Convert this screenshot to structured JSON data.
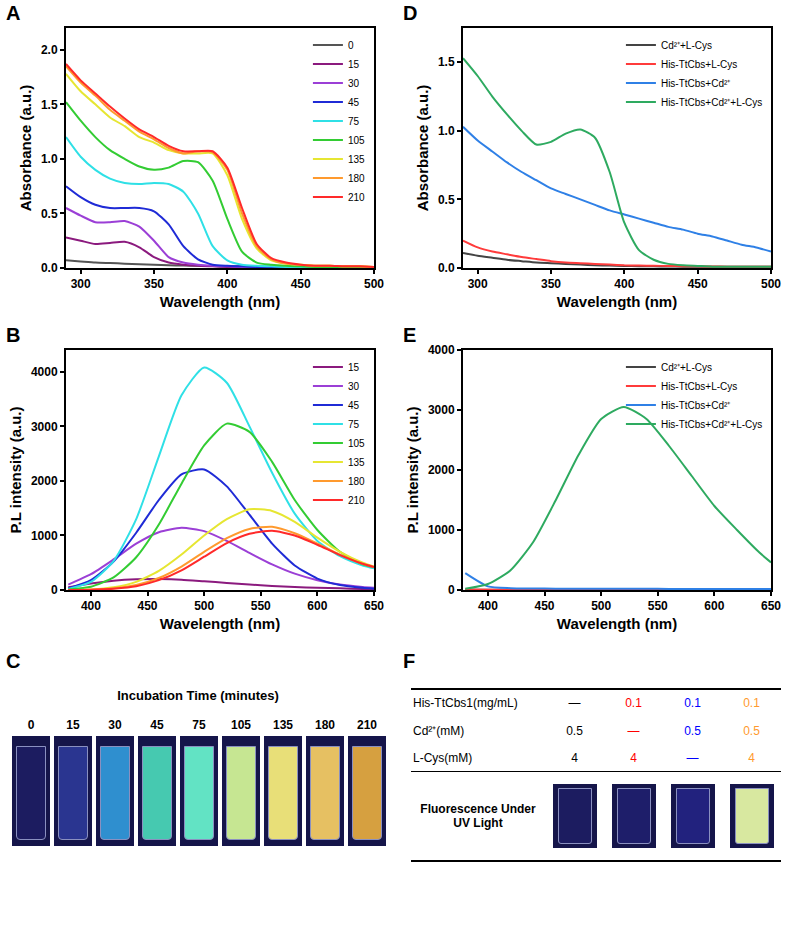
{
  "chart_data": [
    {
      "label": "A",
      "type": "line",
      "x_label": "Wavelength (nm)",
      "y_label": "Absorbance (a.u.)",
      "x": [
        290,
        300,
        310,
        320,
        330,
        340,
        350,
        360,
        370,
        380,
        390,
        400,
        410,
        420,
        430,
        440,
        450,
        460,
        470,
        480,
        490,
        500
      ],
      "xlim": [
        290,
        500
      ],
      "xticks": [
        300,
        350,
        400,
        450,
        500
      ],
      "ylim": [
        0,
        2.2
      ],
      "yticks": [
        {
          "value": 0,
          "label": "0.0"
        },
        {
          "value": 0.5,
          "label": "0.5"
        },
        {
          "value": 1,
          "label": "1.0"
        },
        {
          "value": 1.5,
          "label": "1.5"
        },
        {
          "value": 2,
          "label": "2.0"
        }
      ],
      "grid": false,
      "legend": "top right",
      "series": [
        {
          "name": "0",
          "color": "#555555",
          "values": [
            0.07,
            0.06,
            0.05,
            0.045,
            0.04,
            0.035,
            0.03,
            0.025,
            0.022,
            0.02,
            0.018,
            0.016,
            0.015,
            0.014,
            0.013,
            0.012,
            0.011,
            0.01,
            0.01,
            0.01,
            0.01,
            0.01
          ]
        },
        {
          "name": "15",
          "color": "#8b1a7e",
          "values": [
            0.28,
            0.25,
            0.22,
            0.23,
            0.24,
            0.19,
            0.1,
            0.05,
            0.03,
            0.02,
            0.015,
            0.01,
            0.01,
            0.01,
            0.01,
            0.01,
            0.01,
            0.01,
            0.01,
            0.01,
            0.01,
            0.01
          ]
        },
        {
          "name": "30",
          "color": "#9b3fd6",
          "values": [
            0.55,
            0.48,
            0.42,
            0.42,
            0.43,
            0.38,
            0.25,
            0.1,
            0.05,
            0.03,
            0.02,
            0.015,
            0.01,
            0.01,
            0.01,
            0.01,
            0.01,
            0.01,
            0.01,
            0.01,
            0.01,
            0.01
          ]
        },
        {
          "name": "45",
          "color": "#1f2bd6",
          "values": [
            0.75,
            0.65,
            0.58,
            0.55,
            0.55,
            0.55,
            0.52,
            0.4,
            0.2,
            0.08,
            0.03,
            0.02,
            0.015,
            0.01,
            0.01,
            0.01,
            0.01,
            0.01,
            0.01,
            0.01,
            0.01,
            0.01
          ]
        },
        {
          "name": "75",
          "color": "#2fe0e6",
          "values": [
            1.2,
            1.02,
            0.9,
            0.82,
            0.78,
            0.77,
            0.78,
            0.77,
            0.7,
            0.5,
            0.2,
            0.07,
            0.03,
            0.02,
            0.015,
            0.01,
            0.01,
            0.01,
            0.01,
            0.01,
            0.01,
            0.01
          ]
        },
        {
          "name": "105",
          "color": "#33cc33",
          "values": [
            1.52,
            1.35,
            1.2,
            1.08,
            1.0,
            0.93,
            0.9,
            0.92,
            0.98,
            0.97,
            0.8,
            0.45,
            0.15,
            0.05,
            0.03,
            0.02,
            0.015,
            0.01,
            0.01,
            0.01,
            0.01,
            0.01
          ]
        },
        {
          "name": "135",
          "color": "#e6e632",
          "values": [
            1.78,
            1.62,
            1.5,
            1.38,
            1.3,
            1.2,
            1.15,
            1.08,
            1.05,
            1.05,
            1.05,
            0.85,
            0.45,
            0.18,
            0.07,
            0.04,
            0.03,
            0.02,
            0.02,
            0.015,
            0.015,
            0.01
          ]
        },
        {
          "name": "180",
          "color": "#ff9a2e",
          "values": [
            1.85,
            1.7,
            1.58,
            1.45,
            1.35,
            1.25,
            1.18,
            1.1,
            1.05,
            1.07,
            1.06,
            0.9,
            0.5,
            0.2,
            0.08,
            0.04,
            0.03,
            0.02,
            0.02,
            0.015,
            0.015,
            0.01
          ]
        },
        {
          "name": "210",
          "color": "#ff2a2a",
          "values": [
            1.87,
            1.72,
            1.6,
            1.48,
            1.37,
            1.27,
            1.2,
            1.12,
            1.07,
            1.07,
            1.07,
            0.92,
            0.55,
            0.22,
            0.09,
            0.05,
            0.03,
            0.02,
            0.02,
            0.015,
            0.015,
            0.01
          ]
        }
      ]
    },
    {
      "label": "B",
      "type": "line",
      "x_label": "Wavelength (nm)",
      "y_label": "P.L intensity (a.u.)",
      "x": [
        380,
        400,
        420,
        440,
        460,
        480,
        500,
        520,
        540,
        560,
        580,
        600,
        620,
        640,
        650
      ],
      "xlim": [
        378,
        650
      ],
      "xticks": [
        400,
        450,
        500,
        550,
        600,
        650
      ],
      "ylim": [
        0,
        4400
      ],
      "yticks": [
        0,
        1000,
        2000,
        3000,
        4000
      ],
      "grid": false,
      "legend": "top right",
      "series": [
        {
          "name": "15",
          "color": "#8b1a7e",
          "values": [
            50,
            120,
            170,
            195,
            200,
            190,
            160,
            130,
            100,
            75,
            55,
            40,
            30,
            20,
            15
          ]
        },
        {
          "name": "30",
          "color": "#9b3fd6",
          "values": [
            100,
            290,
            560,
            850,
            1060,
            1140,
            1080,
            900,
            680,
            470,
            300,
            180,
            100,
            55,
            40
          ]
        },
        {
          "name": "45",
          "color": "#1f2bd6",
          "values": [
            30,
            180,
            520,
            1050,
            1650,
            2120,
            2210,
            1900,
            1380,
            850,
            450,
            210,
            90,
            40,
            25
          ]
        },
        {
          "name": "75",
          "color": "#2fe0e6",
          "values": [
            20,
            150,
            530,
            1300,
            2450,
            3570,
            4080,
            3800,
            3000,
            2150,
            1400,
            900,
            620,
            450,
            400
          ]
        },
        {
          "name": "105",
          "color": "#33cc33",
          "values": [
            10,
            60,
            230,
            600,
            1200,
            1950,
            2650,
            3050,
            2900,
            2350,
            1650,
            1100,
            700,
            470,
            420
          ]
        },
        {
          "name": "135",
          "color": "#e6e632",
          "values": [
            0,
            10,
            50,
            150,
            350,
            650,
            1000,
            1300,
            1480,
            1450,
            1250,
            960,
            700,
            500,
            430
          ]
        },
        {
          "name": "180",
          "color": "#ff9a2e",
          "values": [
            0,
            5,
            30,
            90,
            220,
            430,
            700,
            950,
            1120,
            1160,
            1040,
            850,
            650,
            480,
            420
          ]
        },
        {
          "name": "210",
          "color": "#ff2a2a",
          "values": [
            0,
            5,
            25,
            70,
            180,
            360,
            610,
            860,
            1030,
            1085,
            1000,
            830,
            640,
            480,
            420
          ]
        }
      ]
    },
    {
      "label": "D",
      "type": "line",
      "x_label": "Wavelength (nm)",
      "y_label": "Absorbance (a.u.)",
      "x": [
        290,
        300,
        310,
        320,
        330,
        340,
        350,
        360,
        370,
        380,
        390,
        400,
        410,
        420,
        430,
        440,
        450,
        460,
        470,
        480,
        490,
        500
      ],
      "xlim": [
        290,
        500
      ],
      "xticks": [
        300,
        350,
        400,
        450,
        500
      ],
      "ylim": [
        0,
        1.75
      ],
      "yticks": [
        {
          "value": 0,
          "label": "0.0"
        },
        {
          "value": 0.5,
          "label": "0.5"
        },
        {
          "value": 1,
          "label": "1.0"
        },
        {
          "value": 1.5,
          "label": "1.5"
        }
      ],
      "grid": false,
      "legend": "top right",
      "series": [
        {
          "name": "Cd²⁺+L-Cys",
          "color": "#444444",
          "values": [
            0.11,
            0.09,
            0.075,
            0.06,
            0.05,
            0.04,
            0.035,
            0.03,
            0.025,
            0.02,
            0.018,
            0.015,
            0.013,
            0.012,
            0.011,
            0.01,
            0.01,
            0.01,
            0.01,
            0.01,
            0.01,
            0.01
          ]
        },
        {
          "name": "His-TtCbs+L-Cys",
          "color": "#ff3b3b",
          "values": [
            0.2,
            0.15,
            0.12,
            0.1,
            0.08,
            0.065,
            0.05,
            0.04,
            0.035,
            0.03,
            0.025,
            0.02,
            0.018,
            0.016,
            0.015,
            0.013,
            0.012,
            0.011,
            0.01,
            0.01,
            0.01,
            0.01
          ]
        },
        {
          "name": "His-TtCbs+Cd²⁺",
          "color": "#2f80e6",
          "values": [
            1.03,
            0.93,
            0.85,
            0.77,
            0.7,
            0.64,
            0.58,
            0.54,
            0.5,
            0.46,
            0.42,
            0.39,
            0.36,
            0.33,
            0.3,
            0.28,
            0.25,
            0.23,
            0.2,
            0.17,
            0.15,
            0.12
          ]
        },
        {
          "name": "His-TtCbs+Cd²⁺+L-Cys",
          "color": "#2eaa60",
          "values": [
            1.53,
            1.4,
            1.25,
            1.12,
            1.0,
            0.9,
            0.92,
            0.98,
            1.01,
            0.95,
            0.7,
            0.33,
            0.13,
            0.06,
            0.03,
            0.02,
            0.015,
            0.01,
            0.01,
            0.01,
            0.01,
            0.01
          ]
        }
      ]
    },
    {
      "label": "E",
      "type": "line",
      "x_label": "Wavelength (nm)",
      "y_label": "P.L intensity (a.u.)",
      "x": [
        380,
        400,
        420,
        440,
        460,
        480,
        500,
        520,
        540,
        560,
        580,
        600,
        620,
        640,
        650
      ],
      "xlim": [
        378,
        650
      ],
      "xticks": [
        400,
        450,
        500,
        550,
        600,
        650
      ],
      "ylim": [
        0,
        4000
      ],
      "yticks": [
        0,
        1000,
        2000,
        3000,
        4000
      ],
      "grid": false,
      "legend": "top right",
      "series": [
        {
          "name": "Cd²⁺+L-Cys",
          "color": "#444444",
          "values": [
            5,
            3,
            2,
            2,
            2,
            2,
            2,
            2,
            2,
            2,
            2,
            2,
            2,
            2,
            2
          ]
        },
        {
          "name": "His-TtCbs+L-Cys",
          "color": "#ff3b3b",
          "values": [
            10,
            5,
            3,
            3,
            3,
            3,
            3,
            3,
            3,
            3,
            3,
            3,
            3,
            3,
            3
          ]
        },
        {
          "name": "His-TtCbs+Cd²⁺",
          "color": "#2f80e6",
          "values": [
            280,
            60,
            30,
            25,
            22,
            20,
            20,
            20,
            20,
            18,
            18,
            18,
            18,
            18,
            18
          ]
        },
        {
          "name": "His-TtCbs+Cd²⁺+L-Cys",
          "color": "#2eaa60",
          "values": [
            20,
            100,
            330,
            800,
            1500,
            2250,
            2850,
            3050,
            2850,
            2400,
            1900,
            1400,
            1000,
            620,
            460
          ]
        }
      ]
    }
  ],
  "panel_C": {
    "label": "C",
    "title": "Incubation Time (minutes)",
    "samples": [
      {
        "label": "0",
        "color": "#1c1c60"
      },
      {
        "label": "15",
        "color": "#2a3590"
      },
      {
        "label": "30",
        "color": "#2f8fcf"
      },
      {
        "label": "45",
        "color": "#46c9b0"
      },
      {
        "label": "75",
        "color": "#62e3c4"
      },
      {
        "label": "105",
        "color": "#c6e692"
      },
      {
        "label": "135",
        "color": "#e8df78"
      },
      {
        "label": "180",
        "color": "#e6c062"
      },
      {
        "label": "210",
        "color": "#d6a040"
      }
    ]
  },
  "panel_F": {
    "label": "F",
    "column_colors": [
      "#000000",
      "#ff0000",
      "#0000ff",
      "#ff9a2e"
    ],
    "rows": [
      {
        "name": "His-TtCbs1(mg/mL)",
        "values": [
          "—",
          "0.1",
          "0.1",
          "0.1"
        ]
      },
      {
        "name": "Cd²⁺(mM)",
        "values": [
          "0.5",
          "—",
          "0.5",
          "0.5"
        ]
      },
      {
        "name": "L-Cys(mM)",
        "values": [
          "4",
          "4",
          "—",
          "4"
        ]
      }
    ],
    "image_row": {
      "name": "Fluorescence Under UV Light",
      "colors": [
        "#1c1c60",
        "#1e1e6a",
        "#22227e",
        "#d8e8a0"
      ]
    }
  }
}
